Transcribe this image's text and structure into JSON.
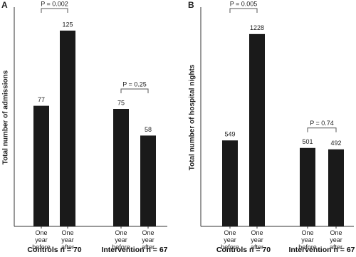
{
  "chart_data": [
    {
      "type": "bar",
      "panel": "A",
      "y_label": "Total number of admissions",
      "categories": [
        "One year before",
        "One year after",
        "One year before",
        "One year after"
      ],
      "groups": [
        "Controls n = 70",
        "Intervention n = 67"
      ],
      "values": [
        77,
        125,
        75,
        58
      ],
      "color": "#1a1a1a",
      "ylim": [
        0,
        140
      ],
      "annotations": [
        "P = 0.002",
        "P = 0.25"
      ]
    },
    {
      "type": "bar",
      "panel": "B",
      "y_label": "Total number of hospital nights",
      "categories": [
        "One year before",
        "One year after",
        "One year before",
        "One year after"
      ],
      "groups": [
        "Controls n = 70",
        "Intervention n = 67"
      ],
      "values": [
        549,
        1228,
        501,
        492
      ],
      "color": "#1a1a1a",
      "ylim": [
        0,
        1400
      ],
      "annotations": [
        "P = 0.005",
        "P = 0.74"
      ]
    }
  ]
}
